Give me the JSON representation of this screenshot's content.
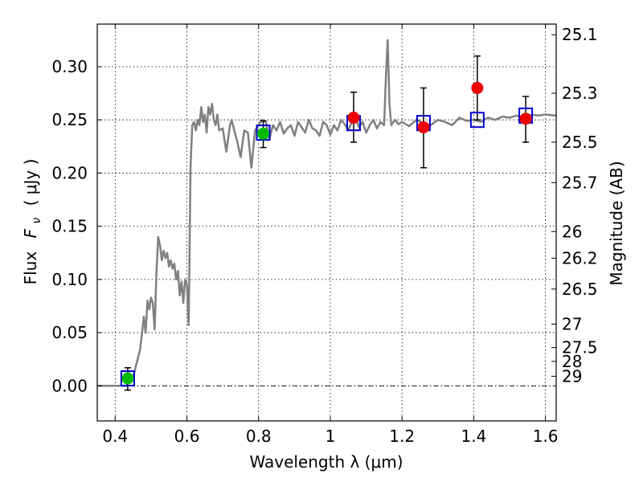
{
  "chart_data": {
    "type": "scatter",
    "title": "",
    "xlabel": "Wavelength  λ (μm)",
    "ylabel_prefix": "Flux",
    "ylabel_symbol": "F",
    "ylabel_subscript": "ν",
    "ylabel_unit": "( μJy )",
    "ylabel_right": "Magnitude (AB)",
    "xlim": [
      0.35,
      1.63
    ],
    "ylim": [
      -0.033,
      0.34
    ],
    "grid": true,
    "x_ticks": [
      0.4,
      0.6,
      0.8,
      1.0,
      1.2,
      1.4,
      1.6
    ],
    "x_tick_labels": [
      "0.4",
      "0.6",
      "0.8",
      "1",
      "1.2",
      "1.4",
      "1.6"
    ],
    "y_ticks": [
      0.0,
      0.05,
      0.1,
      0.15,
      0.2,
      0.25,
      0.3
    ],
    "y_tick_labels": [
      "0.00",
      "0.05",
      "0.10",
      "0.15",
      "0.20",
      "0.25",
      "0.30"
    ],
    "right_ticks": [
      {
        "label": "25.1",
        "flux": 0.33
      },
      {
        "label": "25.3",
        "flux": 0.275
      },
      {
        "label": "25.5",
        "flux": 0.229
      },
      {
        "label": "25.7",
        "flux": 0.191
      },
      {
        "label": "26",
        "flux": 0.145
      },
      {
        "label": "26.2",
        "flux": 0.12
      },
      {
        "label": "26.5",
        "flux": 0.091
      },
      {
        "label": "27",
        "flux": 0.058
      },
      {
        "label": "27.5",
        "flux": 0.036
      },
      {
        "label": "28",
        "flux": 0.023
      },
      {
        "label": "29",
        "flux": 0.009
      }
    ],
    "model_spectrum": {
      "color": "#808080",
      "x": [
        0.35,
        0.43,
        0.45,
        0.47,
        0.48,
        0.485,
        0.49,
        0.495,
        0.5,
        0.505,
        0.51,
        0.515,
        0.52,
        0.525,
        0.53,
        0.535,
        0.54,
        0.545,
        0.55,
        0.555,
        0.56,
        0.565,
        0.57,
        0.575,
        0.58,
        0.585,
        0.59,
        0.595,
        0.6,
        0.605,
        0.61,
        0.615,
        0.62,
        0.625,
        0.63,
        0.635,
        0.64,
        0.645,
        0.65,
        0.655,
        0.66,
        0.665,
        0.67,
        0.675,
        0.68,
        0.685,
        0.69,
        0.7,
        0.71,
        0.72,
        0.725,
        0.73,
        0.74,
        0.75,
        0.76,
        0.77,
        0.78,
        0.79,
        0.8,
        0.81,
        0.82,
        0.83,
        0.84,
        0.85,
        0.86,
        0.87,
        0.88,
        0.89,
        0.9,
        0.91,
        0.92,
        0.93,
        0.94,
        0.95,
        0.96,
        0.97,
        0.98,
        0.99,
        1.0,
        1.01,
        1.02,
        1.03,
        1.04,
        1.05,
        1.06,
        1.07,
        1.08,
        1.09,
        1.1,
        1.11,
        1.12,
        1.13,
        1.14,
        1.15,
        1.155,
        1.16,
        1.165,
        1.17,
        1.18,
        1.19,
        1.2,
        1.22,
        1.24,
        1.26,
        1.28,
        1.3,
        1.32,
        1.34,
        1.36,
        1.38,
        1.4,
        1.42,
        1.44,
        1.46,
        1.48,
        1.5,
        1.52,
        1.54,
        1.56,
        1.58,
        1.6,
        1.63
      ],
      "y": [
        0.0,
        0.0,
        0.008,
        0.035,
        0.065,
        0.05,
        0.08,
        0.072,
        0.083,
        0.078,
        0.053,
        0.105,
        0.14,
        0.132,
        0.118,
        0.127,
        0.12,
        0.125,
        0.112,
        0.118,
        0.11,
        0.115,
        0.1,
        0.108,
        0.085,
        0.098,
        0.078,
        0.1,
        0.095,
        0.057,
        0.205,
        0.245,
        0.248,
        0.24,
        0.25,
        0.245,
        0.262,
        0.248,
        0.255,
        0.238,
        0.262,
        0.255,
        0.265,
        0.25,
        0.245,
        0.255,
        0.24,
        0.242,
        0.22,
        0.245,
        0.25,
        0.243,
        0.23,
        0.215,
        0.24,
        0.238,
        0.205,
        0.24,
        0.245,
        0.25,
        0.248,
        0.232,
        0.245,
        0.24,
        0.248,
        0.237,
        0.242,
        0.245,
        0.235,
        0.248,
        0.243,
        0.238,
        0.25,
        0.242,
        0.24,
        0.235,
        0.248,
        0.245,
        0.236,
        0.245,
        0.24,
        0.25,
        0.246,
        0.24,
        0.248,
        0.252,
        0.243,
        0.248,
        0.238,
        0.245,
        0.25,
        0.242,
        0.248,
        0.245,
        0.29,
        0.325,
        0.265,
        0.245,
        0.25,
        0.246,
        0.248,
        0.244,
        0.25,
        0.247,
        0.245,
        0.25,
        0.248,
        0.245,
        0.252,
        0.249,
        0.25,
        0.248,
        0.252,
        0.25,
        0.253,
        0.252,
        0.254,
        0.252,
        0.255,
        0.254,
        0.255,
        0.254
      ]
    },
    "series": [
      {
        "marker": "open-square",
        "color": "#0000cc",
        "points": [
          {
            "x": 0.435,
            "y": 0.007
          },
          {
            "x": 0.813,
            "y": 0.238
          },
          {
            "x": 1.065,
            "y": 0.247
          },
          {
            "x": 1.26,
            "y": 0.247
          },
          {
            "x": 1.41,
            "y": 0.25
          },
          {
            "x": 1.545,
            "y": 0.254
          }
        ]
      },
      {
        "marker": "filled-circle",
        "color": "#00bb00",
        "points": [
          {
            "x": 0.435,
            "y": 0.007,
            "yerr_low": -0.004,
            "yerr_high": 0.017
          },
          {
            "x": 0.813,
            "y": 0.237,
            "yerr_low": 0.224,
            "yerr_high": 0.249
          }
        ]
      },
      {
        "marker": "filled-circle",
        "color": "#ee0000",
        "points": [
          {
            "x": 1.065,
            "y": 0.252,
            "yerr_low": 0.229,
            "yerr_high": 0.276
          },
          {
            "x": 1.26,
            "y": 0.243,
            "yerr_low": 0.205,
            "yerr_high": 0.28
          },
          {
            "x": 1.41,
            "y": 0.28,
            "yerr_low": 0.25,
            "yerr_high": 0.31
          },
          {
            "x": 1.545,
            "y": 0.251,
            "yerr_low": 0.229,
            "yerr_high": 0.272
          }
        ]
      }
    ]
  }
}
